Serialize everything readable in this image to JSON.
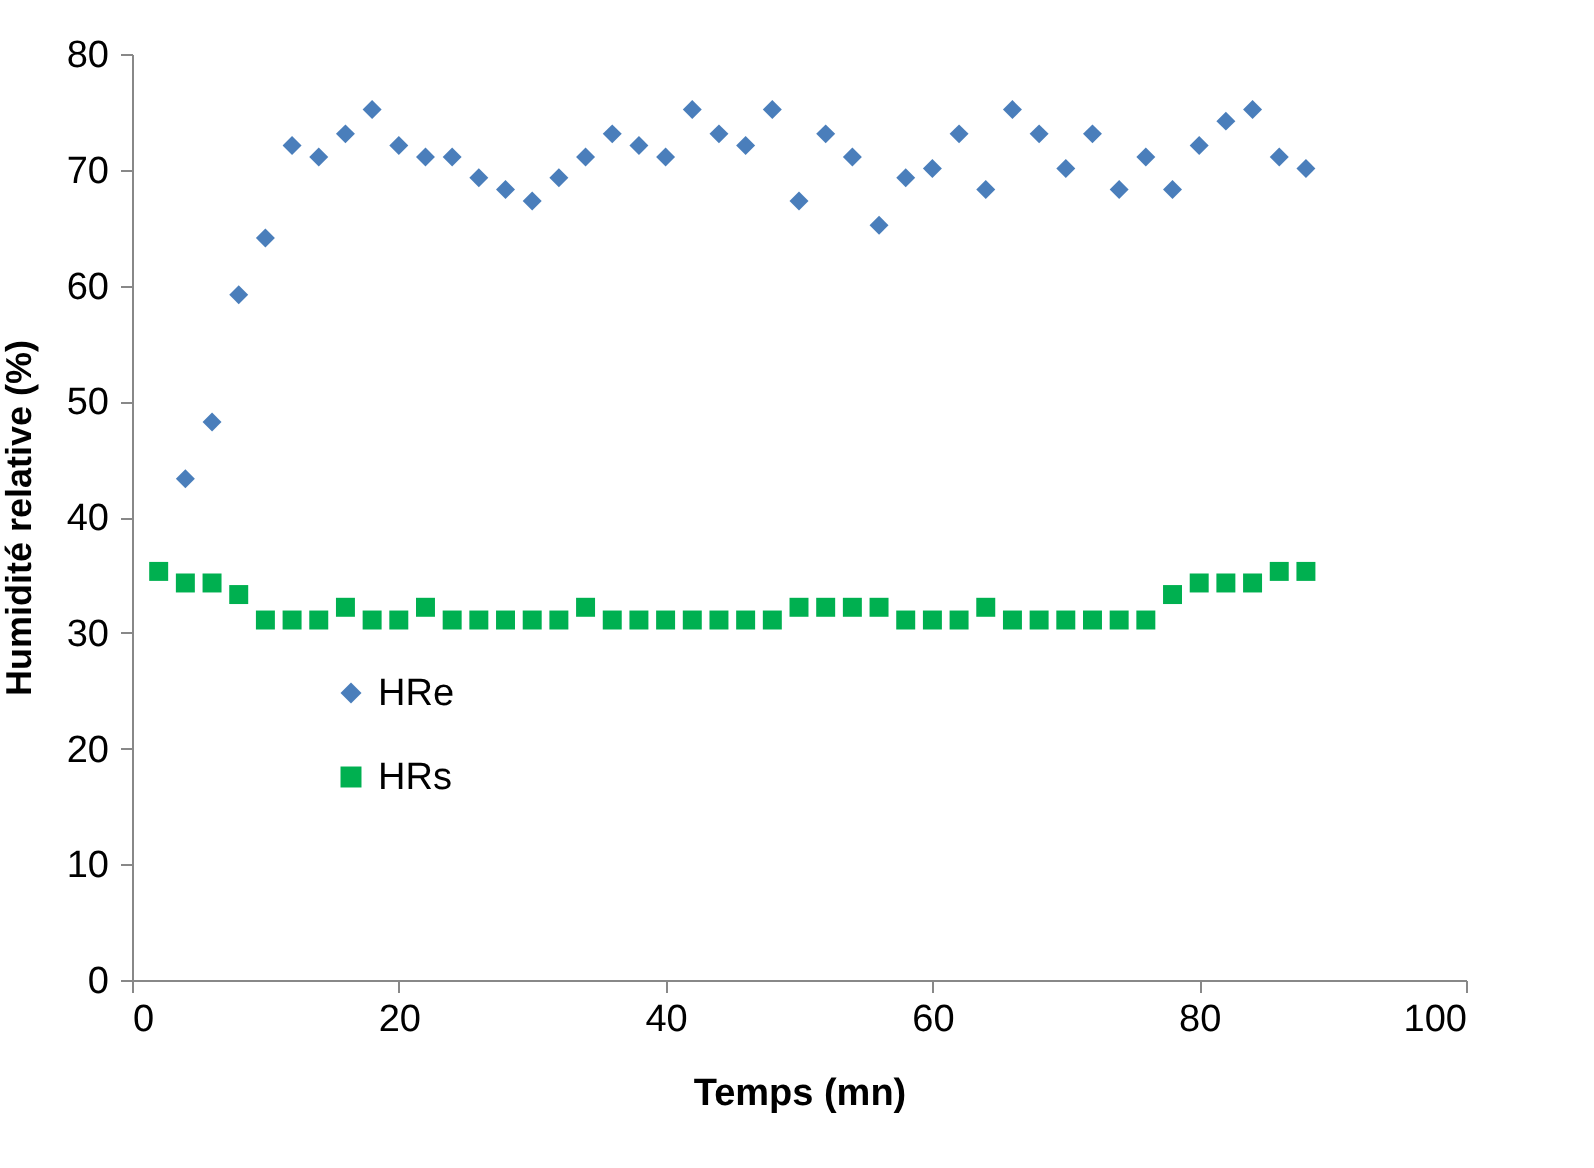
{
  "chart_data": {
    "type": "scatter",
    "xlabel": "Temps (mn)",
    "ylabel": "Humidité relative (%)",
    "xlim": [
      0,
      100
    ],
    "xticks": [
      0,
      20,
      40,
      60,
      80,
      100
    ],
    "ylim": [
      0,
      80
    ],
    "yticks": [
      0,
      10,
      20,
      30,
      40,
      50,
      60,
      70,
      80
    ],
    "grid": false,
    "legend": "left",
    "series": [
      {
        "name": "HRe",
        "color": "#4a7ebb",
        "marker": "diamond",
        "x": [
          4,
          6,
          8,
          10,
          12,
          14,
          16,
          18,
          20,
          22,
          24,
          26,
          28,
          30,
          32,
          34,
          36,
          38,
          40,
          42,
          44,
          46,
          48,
          50,
          52,
          54,
          56,
          58,
          60,
          62,
          64,
          66,
          68,
          70,
          72,
          74,
          76,
          78,
          80,
          82,
          84,
          86,
          88
        ],
        "values": [
          43.3,
          48.2,
          59.2,
          64.1,
          72.1,
          71.1,
          73.1,
          75.2,
          72.1,
          71.1,
          71.1,
          69.3,
          68.3,
          67.3,
          69.3,
          71.1,
          73.1,
          72.1,
          71.1,
          75.2,
          73.1,
          72.1,
          75.2,
          67.3,
          73.1,
          71.1,
          65.2,
          69.3,
          70.1,
          73.1,
          68.3,
          75.2,
          73.1,
          70.1,
          73.1,
          68.3,
          71.1,
          68.3,
          72.1,
          74.2,
          75.2,
          71.1,
          70.1
        ]
      },
      {
        "name": "HRs",
        "color": "#00b050",
        "marker": "square",
        "x": [
          2,
          4,
          6,
          8,
          10,
          12,
          14,
          16,
          18,
          20,
          22,
          24,
          26,
          28,
          30,
          32,
          34,
          36,
          38,
          40,
          42,
          44,
          46,
          48,
          50,
          52,
          54,
          56,
          58,
          60,
          62,
          64,
          66,
          68,
          70,
          72,
          74,
          76,
          78,
          80,
          82,
          84,
          86,
          88
        ],
        "values": [
          35.3,
          34.3,
          34.3,
          33.3,
          31.1,
          31.1,
          31.1,
          32.2,
          31.1,
          31.1,
          32.2,
          31.1,
          31.1,
          31.1,
          31.1,
          31.1,
          32.2,
          31.1,
          31.1,
          31.1,
          31.1,
          31.1,
          31.1,
          31.1,
          32.2,
          32.2,
          32.2,
          32.2,
          31.1,
          31.1,
          31.1,
          32.2,
          31.1,
          31.1,
          31.1,
          31.1,
          31.1,
          31.1,
          33.3,
          34.3,
          34.3,
          34.3,
          35.3,
          35.3
        ]
      }
    ]
  }
}
